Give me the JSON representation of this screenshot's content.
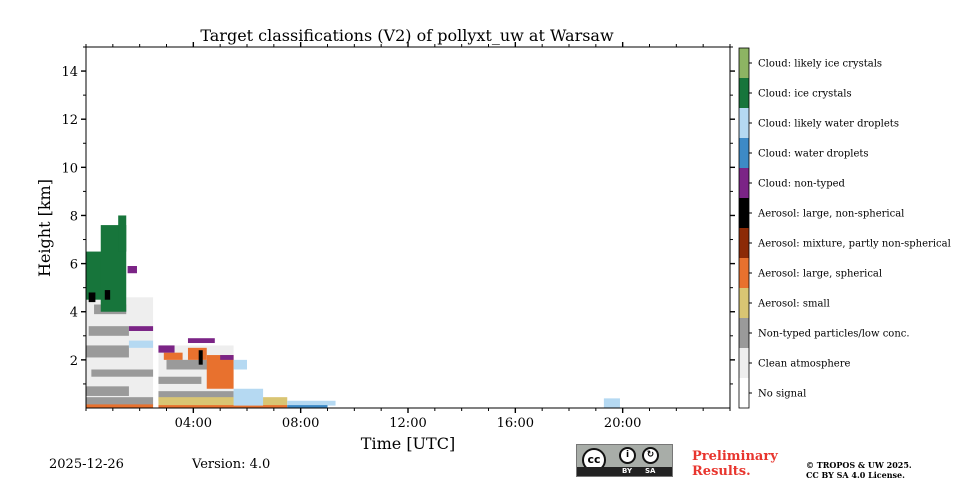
{
  "chart_data": {
    "type": "heatmap",
    "title": "Target classifications (V2) of pollyxt_uw at Warsaw",
    "xlabel": "Time [UTC]",
    "ylabel": "Height [km]",
    "xlim": [
      0,
      24
    ],
    "ylim": [
      0,
      15
    ],
    "x_ticks": [
      4,
      8,
      12,
      16,
      20
    ],
    "x_tick_labels": [
      "04:00",
      "08:00",
      "12:00",
      "16:00",
      "20:00"
    ],
    "x_minor_step": 1,
    "y_ticks": [
      2,
      4,
      6,
      8,
      10,
      12,
      14
    ],
    "y_tick_labels": [
      "2",
      "4",
      "6",
      "8",
      "10",
      "12",
      "14"
    ],
    "y_minor_step": 1,
    "classes": [
      {
        "id": 0,
        "label": "No signal",
        "color": "#ffffff"
      },
      {
        "id": 1,
        "label": "Clean atmosphere",
        "color": "#eeeeee"
      },
      {
        "id": 2,
        "label": "Non-typed particles/low conc.",
        "color": "#9a9a9a"
      },
      {
        "id": 3,
        "label": "Aerosol: small",
        "color": "#d9c573"
      },
      {
        "id": 4,
        "label": "Aerosol: large, spherical",
        "color": "#e8712e"
      },
      {
        "id": 5,
        "label": "Aerosol: mixture, partly non-spherical",
        "color": "#8c2a06"
      },
      {
        "id": 6,
        "label": "Aerosol: large, non-spherical",
        "color": "#000000"
      },
      {
        "id": 7,
        "label": "Cloud: non-typed",
        "color": "#7b2486"
      },
      {
        "id": 8,
        "label": "Cloud: water droplets",
        "color": "#3d8ac6"
      },
      {
        "id": 9,
        "label": "Cloud: likely water droplets",
        "color": "#b5d9f2"
      },
      {
        "id": 10,
        "label": "Cloud: ice crystals",
        "color": "#17753b"
      },
      {
        "id": 11,
        "label": "Cloud: likely ice crystals",
        "color": "#8db463"
      }
    ],
    "regions": [
      {
        "class": 1,
        "t0": 0.0,
        "t1": 2.5,
        "h0": 0.1,
        "h1": 4.6
      },
      {
        "class": 2,
        "t0": 0.0,
        "t1": 2.5,
        "h0": 0.1,
        "h1": 0.45
      },
      {
        "class": 2,
        "t0": 0.0,
        "t1": 1.6,
        "h0": 0.5,
        "h1": 0.9
      },
      {
        "class": 2,
        "t0": 0.2,
        "t1": 2.5,
        "h0": 1.3,
        "h1": 1.6
      },
      {
        "class": 2,
        "t0": 0.0,
        "t1": 1.6,
        "h0": 2.1,
        "h1": 2.6
      },
      {
        "class": 2,
        "t0": 0.1,
        "t1": 1.6,
        "h0": 3.0,
        "h1": 3.4
      },
      {
        "class": 2,
        "t0": 0.3,
        "t1": 1.5,
        "h0": 3.9,
        "h1": 4.3
      },
      {
        "class": 4,
        "t0": 0.0,
        "t1": 2.5,
        "h0": 0.0,
        "h1": 0.15
      },
      {
        "class": 10,
        "t0": 0.0,
        "t1": 0.85,
        "h0": 4.5,
        "h1": 6.5
      },
      {
        "class": 10,
        "t0": 0.55,
        "t1": 1.5,
        "h0": 4.0,
        "h1": 7.6
      },
      {
        "class": 10,
        "t0": 1.2,
        "t1": 1.5,
        "h0": 6.5,
        "h1": 8.0
      },
      {
        "class": 6,
        "t0": 0.1,
        "t1": 0.35,
        "h0": 4.4,
        "h1": 4.8
      },
      {
        "class": 6,
        "t0": 0.7,
        "t1": 0.9,
        "h0": 4.5,
        "h1": 4.9
      },
      {
        "class": 7,
        "t0": 1.55,
        "t1": 1.9,
        "h0": 5.6,
        "h1": 5.9
      },
      {
        "class": 7,
        "t0": 1.6,
        "t1": 2.5,
        "h0": 3.2,
        "h1": 3.4
      },
      {
        "class": 9,
        "t0": 1.6,
        "t1": 2.5,
        "h0": 2.5,
        "h1": 2.8
      },
      {
        "class": 1,
        "t0": 2.7,
        "t1": 5.5,
        "h0": 0.3,
        "h1": 2.6
      },
      {
        "class": 2,
        "t0": 2.7,
        "t1": 5.5,
        "h0": 0.3,
        "h1": 0.7
      },
      {
        "class": 2,
        "t0": 2.7,
        "t1": 4.3,
        "h0": 1.0,
        "h1": 1.3
      },
      {
        "class": 2,
        "t0": 3.0,
        "t1": 5.5,
        "h0": 1.6,
        "h1": 2.0
      },
      {
        "class": 4,
        "t0": 4.5,
        "t1": 5.5,
        "h0": 0.8,
        "h1": 2.2
      },
      {
        "class": 4,
        "t0": 3.8,
        "t1": 4.5,
        "h0": 2.0,
        "h1": 2.5
      },
      {
        "class": 4,
        "t0": 2.9,
        "t1": 3.6,
        "h0": 2.0,
        "h1": 2.3
      },
      {
        "class": 7,
        "t0": 2.7,
        "t1": 3.3,
        "h0": 2.3,
        "h1": 2.6
      },
      {
        "class": 7,
        "t0": 3.8,
        "t1": 4.8,
        "h0": 2.7,
        "h1": 2.9
      },
      {
        "class": 7,
        "t0": 5.0,
        "t1": 5.5,
        "h0": 2.0,
        "h1": 2.2
      },
      {
        "class": 6,
        "t0": 4.2,
        "t1": 4.35,
        "h0": 1.8,
        "h1": 2.4
      },
      {
        "class": 3,
        "t0": 2.7,
        "t1": 7.5,
        "h0": 0.1,
        "h1": 0.45
      },
      {
        "class": 4,
        "t0": 2.7,
        "t1": 7.5,
        "h0": 0.0,
        "h1": 0.12
      },
      {
        "class": 9,
        "t0": 5.5,
        "t1": 6.6,
        "h0": 0.1,
        "h1": 0.8
      },
      {
        "class": 9,
        "t0": 5.5,
        "t1": 6.0,
        "h0": 1.6,
        "h1": 2.0
      },
      {
        "class": 9,
        "t0": 7.5,
        "t1": 9.3,
        "h0": 0.1,
        "h1": 0.3
      },
      {
        "class": 8,
        "t0": 7.5,
        "t1": 9.0,
        "h0": 0.0,
        "h1": 0.12
      },
      {
        "class": 9,
        "t0": 19.3,
        "t1": 19.9,
        "h0": 0.0,
        "h1": 0.4
      }
    ]
  },
  "footer": {
    "date": "2025-12-26",
    "version": "Version: 4.0",
    "preliminary": [
      "Preliminary",
      "Results."
    ],
    "copyright": [
      "© TROPOS & UW 2025.",
      "CC BY SA 4.0 License."
    ],
    "license_labels": {
      "cc": "cc",
      "by": "BY",
      "sa": "SA"
    }
  }
}
